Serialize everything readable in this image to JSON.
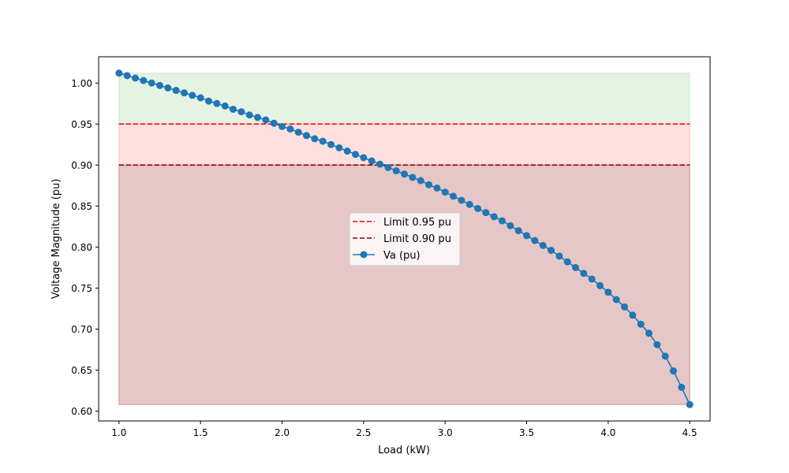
{
  "chart_data": {
    "type": "line",
    "title": "",
    "xlabel": "Load (kW)",
    "ylabel": "Voltage Magnitude (pu)",
    "xlim": [
      0.875,
      4.625
    ],
    "ylim": [
      0.588,
      1.032
    ],
    "x_ticks": [
      1.0,
      1.5,
      2.0,
      2.5,
      3.0,
      3.5,
      4.0,
      4.5
    ],
    "x_tick_labels": [
      "1.0",
      "1.5",
      "2.0",
      "2.5",
      "3.0",
      "3.5",
      "4.0",
      "4.5"
    ],
    "y_ticks": [
      0.6,
      0.65,
      0.7,
      0.75,
      0.8,
      0.85,
      0.9,
      0.95,
      1.0
    ],
    "y_tick_labels": [
      "0.60",
      "0.65",
      "0.70",
      "0.75",
      "0.80",
      "0.85",
      "0.90",
      "0.95",
      "1.00"
    ],
    "grid": false,
    "legend_position": "center",
    "legend": [
      {
        "label": "Limit 0.95 pu",
        "style": "dashed",
        "color": "#ff0000"
      },
      {
        "label": "Limit 0.90 pu",
        "style": "dashed",
        "color": "#8b0000"
      },
      {
        "label": "Va (pu)",
        "style": "line-marker",
        "color": "#1f77b4"
      }
    ],
    "reference_lines": [
      {
        "name": "Limit 0.95 pu",
        "y": 0.95,
        "color": "#ff0000"
      },
      {
        "name": "Limit 0.90 pu",
        "y": 0.9,
        "color": "#8b0000"
      }
    ],
    "shaded_bands": [
      {
        "y_from": 0.95,
        "y_to": 1.012,
        "color": "#2ca02c",
        "opacity": 0.12
      },
      {
        "y_from": 0.9,
        "y_to": 0.95,
        "color": "#ff0000",
        "opacity": 0.12
      },
      {
        "y_from": 0.608,
        "y_to": 0.9,
        "color": "#8b0000",
        "opacity": 0.22
      }
    ],
    "band_x_range": [
      1.0,
      4.5
    ],
    "series": [
      {
        "name": "Va (pu)",
        "color": "#1f77b4",
        "x": [
          1.0,
          1.05,
          1.1,
          1.15,
          1.2,
          1.25,
          1.3,
          1.35,
          1.4,
          1.45,
          1.5,
          1.55,
          1.6,
          1.65,
          1.7,
          1.75,
          1.8,
          1.85,
          1.9,
          1.95,
          2.0,
          2.05,
          2.1,
          2.15,
          2.2,
          2.25,
          2.3,
          2.35,
          2.4,
          2.45,
          2.5,
          2.55,
          2.6,
          2.65,
          2.7,
          2.75,
          2.8,
          2.85,
          2.9,
          2.95,
          3.0,
          3.05,
          3.1,
          3.15,
          3.2,
          3.25,
          3.3,
          3.35,
          3.4,
          3.45,
          3.5,
          3.55,
          3.6,
          3.65,
          3.7,
          3.75,
          3.8,
          3.85,
          3.9,
          3.95,
          4.0,
          4.05,
          4.1,
          4.15,
          4.2,
          4.25,
          4.3,
          4.35,
          4.4,
          4.45,
          4.5
        ],
        "values": [
          1.012,
          1.009,
          1.006,
          1.003,
          1.0,
          0.997,
          0.994,
          0.991,
          0.988,
          0.985,
          0.982,
          0.978,
          0.975,
          0.972,
          0.968,
          0.965,
          0.961,
          0.958,
          0.955,
          0.951,
          0.947,
          0.944,
          0.94,
          0.936,
          0.932,
          0.929,
          0.925,
          0.921,
          0.917,
          0.913,
          0.909,
          0.905,
          0.901,
          0.897,
          0.893,
          0.889,
          0.885,
          0.881,
          0.876,
          0.872,
          0.867,
          0.862,
          0.857,
          0.852,
          0.847,
          0.842,
          0.837,
          0.832,
          0.826,
          0.82,
          0.814,
          0.808,
          0.802,
          0.796,
          0.789,
          0.782,
          0.775,
          0.768,
          0.761,
          0.753,
          0.745,
          0.736,
          0.727,
          0.717,
          0.706,
          0.695,
          0.681,
          0.667,
          0.649,
          0.629,
          0.608
        ]
      }
    ]
  }
}
